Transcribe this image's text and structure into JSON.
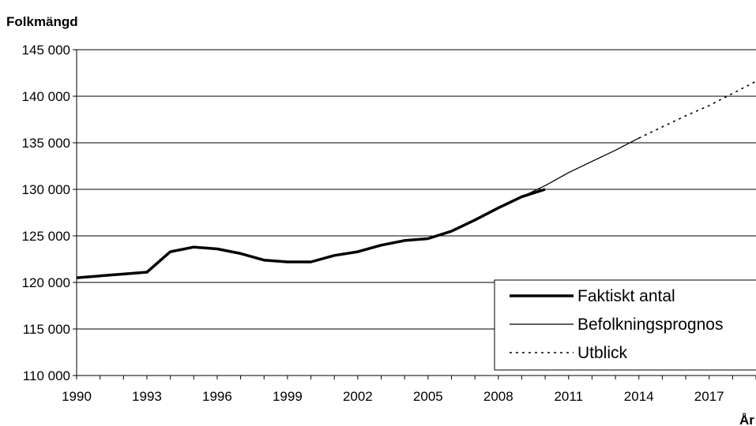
{
  "chart_data": {
    "type": "line",
    "title": "",
    "ylabel": "Folkmängd",
    "xlabel": "År",
    "xlim": [
      1990,
      2019
    ],
    "ylim": [
      110000,
      145000
    ],
    "x_ticks": [
      1990,
      1993,
      1996,
      1999,
      2002,
      2005,
      2008,
      2011,
      2014,
      2017
    ],
    "x_tick_labels": [
      "1990",
      "1993",
      "1996",
      "1999",
      "2002",
      "2005",
      "2008",
      "2011",
      "2014",
      "2017"
    ],
    "y_ticks": [
      110000,
      115000,
      120000,
      125000,
      130000,
      135000,
      140000,
      145000
    ],
    "y_tick_labels": [
      "110 000",
      "115 000",
      "120 000",
      "125 000",
      "130 000",
      "135 000",
      "140 000",
      "145 000"
    ],
    "grid": "horizontal",
    "legend_position": "bottom-right",
    "series": [
      {
        "name": "Faktiskt antal",
        "style": "thick",
        "color": "#000000",
        "x": [
          1990,
          1991,
          1992,
          1993,
          1994,
          1995,
          1996,
          1997,
          1998,
          1999,
          2000,
          2001,
          2002,
          2003,
          2004,
          2005,
          2006,
          2007,
          2008,
          2009,
          2010
        ],
        "y": [
          120500,
          120700,
          120900,
          121100,
          123300,
          123800,
          123600,
          123100,
          122400,
          122200,
          122200,
          122900,
          123300,
          124000,
          124500,
          124700,
          125500,
          126700,
          128000,
          129200,
          130000
        ]
      },
      {
        "name": "Befolkningsprognos",
        "style": "thin",
        "color": "#000000",
        "x": [
          2009,
          2010,
          2011,
          2012,
          2013,
          2014
        ],
        "y": [
          129200,
          130400,
          131800,
          133000,
          134200,
          135500
        ]
      },
      {
        "name": "Utblick",
        "style": "dotted",
        "color": "#000000",
        "x": [
          2014,
          2015,
          2016,
          2017,
          2018,
          2019
        ],
        "y": [
          135500,
          136700,
          137900,
          139000,
          140300,
          141600
        ]
      }
    ]
  }
}
